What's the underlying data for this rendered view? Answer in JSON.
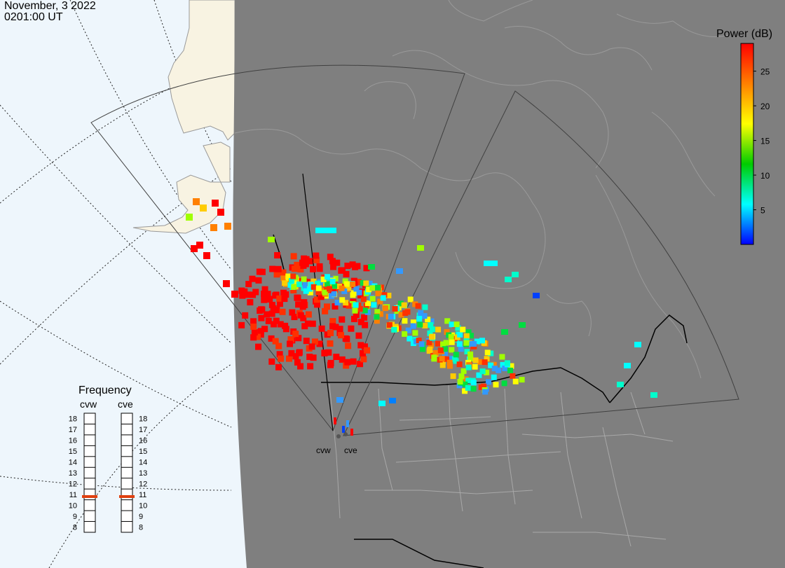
{
  "header": {
    "date": "November, 3 2022",
    "time": "0201:00 UT"
  },
  "colorbar": {
    "title": "Power (dB)",
    "ticks": [
      "5",
      "10",
      "15",
      "20",
      "25"
    ],
    "range": [
      0,
      29
    ],
    "stops": [
      "#0000ff",
      "#00ffff",
      "#00cc00",
      "#ffff00",
      "#ff8000",
      "#ff0000"
    ]
  },
  "frequency_panel": {
    "title": "Frequency",
    "radars": [
      "cvw",
      "cve"
    ],
    "scale": [
      "18",
      "17",
      "16",
      "15",
      "14",
      "13",
      "12",
      "11",
      "10",
      "9",
      "8"
    ],
    "cvw_mhz": 10.8,
    "cve_mhz": 10.8,
    "marker_color": "#e04010"
  },
  "radar_sites": [
    {
      "name": "cvw"
    },
    {
      "name": "cve"
    }
  ],
  "colors": {
    "ocean": "#eef6fc",
    "night": "#7f7f7f",
    "land_day": "#f8f3e2",
    "border": "#000000",
    "state_line": "#a8a8a8",
    "fov": "#404040"
  }
}
